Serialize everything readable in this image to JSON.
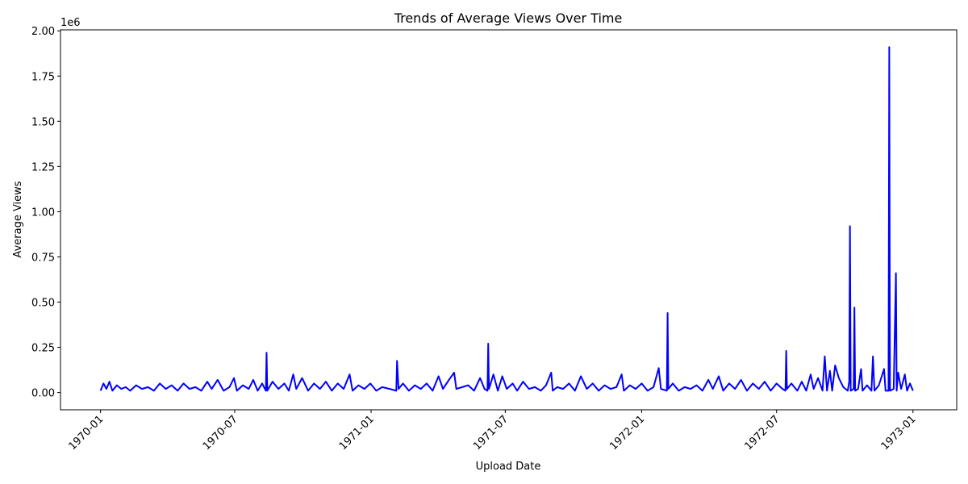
{
  "chart_data": {
    "type": "line",
    "title": "Trends of Average Views Over Time",
    "x_label": "Upload Date",
    "y_label": "Average Views",
    "y_offset_label": "1e6",
    "color": "#0000ff",
    "x": [
      0,
      4,
      8,
      12,
      16,
      22,
      28,
      34,
      40,
      48,
      56,
      64,
      72,
      80,
      88,
      96,
      104,
      112,
      120,
      128,
      136,
      144,
      150,
      158,
      166,
      174,
      180,
      184,
      192,
      200,
      206,
      212,
      218,
      223,
      224,
      225,
      232,
      240,
      248,
      254,
      260,
      264,
      272,
      280,
      288,
      296,
      304,
      312,
      320,
      328,
      336,
      340,
      348,
      356,
      364,
      372,
      380,
      390,
      399,
      400,
      402,
      408,
      416,
      424,
      432,
      440,
      448,
      456,
      462,
      470,
      477,
      480,
      488,
      496,
      504,
      512,
      518,
      522,
      523,
      524,
      530,
      536,
      542,
      548,
      556,
      562,
      570,
      578,
      586,
      594,
      601,
      608,
      610,
      616,
      624,
      632,
      640,
      648,
      656,
      664,
      672,
      680,
      688,
      696,
      703,
      706,
      714,
      722,
      730,
      738,
      746,
      753,
      756,
      764,
      765,
      766,
      772,
      780,
      788,
      796,
      804,
      812,
      820,
      826,
      834,
      840,
      848,
      856,
      864,
      872,
      880,
      888,
      896,
      904,
      912,
      920,
      924,
      925,
      926,
      932,
      940,
      946,
      952,
      958,
      962,
      968,
      974,
      977,
      980,
      984,
      987,
      991,
      996,
      1002,
      1008,
      1010,
      1011,
      1012,
      1016,
      1017,
      1018,
      1022,
      1026,
      1028,
      1034,
      1040,
      1042,
      1044,
      1050,
      1057,
      1059,
      1063,
      1064,
      1065,
      1070,
      1073,
      1074,
      1076,
      1080,
      1085,
      1088,
      1092,
      1096
    ],
    "values": [
      0.01,
      0.05,
      0.02,
      0.06,
      0.01,
      0.04,
      0.02,
      0.03,
      0.01,
      0.04,
      0.02,
      0.03,
      0.01,
      0.05,
      0.02,
      0.04,
      0.01,
      0.05,
      0.02,
      0.03,
      0.01,
      0.06,
      0.02,
      0.07,
      0.01,
      0.03,
      0.08,
      0.01,
      0.04,
      0.02,
      0.07,
      0.01,
      0.05,
      0.01,
      0.22,
      0.01,
      0.06,
      0.02,
      0.05,
      0.01,
      0.1,
      0.02,
      0.08,
      0.01,
      0.05,
      0.02,
      0.06,
      0.01,
      0.05,
      0.02,
      0.1,
      0.01,
      0.04,
      0.02,
      0.05,
      0.01,
      0.03,
      0.02,
      0.01,
      0.175,
      0.02,
      0.05,
      0.01,
      0.04,
      0.02,
      0.05,
      0.01,
      0.09,
      0.02,
      0.07,
      0.11,
      0.02,
      0.03,
      0.04,
      0.01,
      0.08,
      0.02,
      0.01,
      0.27,
      0.02,
      0.1,
      0.01,
      0.09,
      0.02,
      0.05,
      0.01,
      0.06,
      0.02,
      0.03,
      0.01,
      0.04,
      0.11,
      0.01,
      0.03,
      0.02,
      0.05,
      0.01,
      0.09,
      0.02,
      0.05,
      0.01,
      0.04,
      0.02,
      0.03,
      0.1,
      0.01,
      0.04,
      0.02,
      0.05,
      0.01,
      0.03,
      0.135,
      0.02,
      0.01,
      0.44,
      0.02,
      0.05,
      0.01,
      0.03,
      0.02,
      0.04,
      0.01,
      0.07,
      0.02,
      0.09,
      0.01,
      0.05,
      0.02,
      0.07,
      0.01,
      0.05,
      0.02,
      0.06,
      0.01,
      0.05,
      0.02,
      0.01,
      0.23,
      0.02,
      0.05,
      0.01,
      0.06,
      0.01,
      0.1,
      0.02,
      0.08,
      0.01,
      0.2,
      0.01,
      0.12,
      0.01,
      0.15,
      0.08,
      0.03,
      0.01,
      0.06,
      0.92,
      0.01,
      0.02,
      0.47,
      0.01,
      0.02,
      0.13,
      0.01,
      0.04,
      0.01,
      0.2,
      0.01,
      0.04,
      0.13,
      0.01,
      0.01,
      1.91,
      0.01,
      0.02,
      0.66,
      0.01,
      0.11,
      0.02,
      0.1,
      0.01,
      0.05,
      0.01
    ],
    "xlim": [
      -54,
      1155
    ],
    "xticks": [
      {
        "value": 0,
        "label": "1970-01"
      },
      {
        "value": 181,
        "label": "1970-07"
      },
      {
        "value": 365,
        "label": "1971-01"
      },
      {
        "value": 546,
        "label": "1971-07"
      },
      {
        "value": 730,
        "label": "1972-01"
      },
      {
        "value": 912,
        "label": "1972-07"
      },
      {
        "value": 1096,
        "label": "1973-01"
      }
    ],
    "ylim": [
      -0.0955,
      2.0055
    ],
    "yticks": [
      {
        "value": 0,
        "label": "0.00"
      },
      0.25,
      {
        "value": 0.5,
        "label": "0.50"
      },
      0.75,
      {
        "value": 1,
        "label": "1.00"
      },
      1.25,
      {
        "value": 1.5,
        "label": "1.50"
      },
      1.75,
      {
        "value": 2,
        "label": "2.00"
      }
    ],
    "grid": false
  }
}
